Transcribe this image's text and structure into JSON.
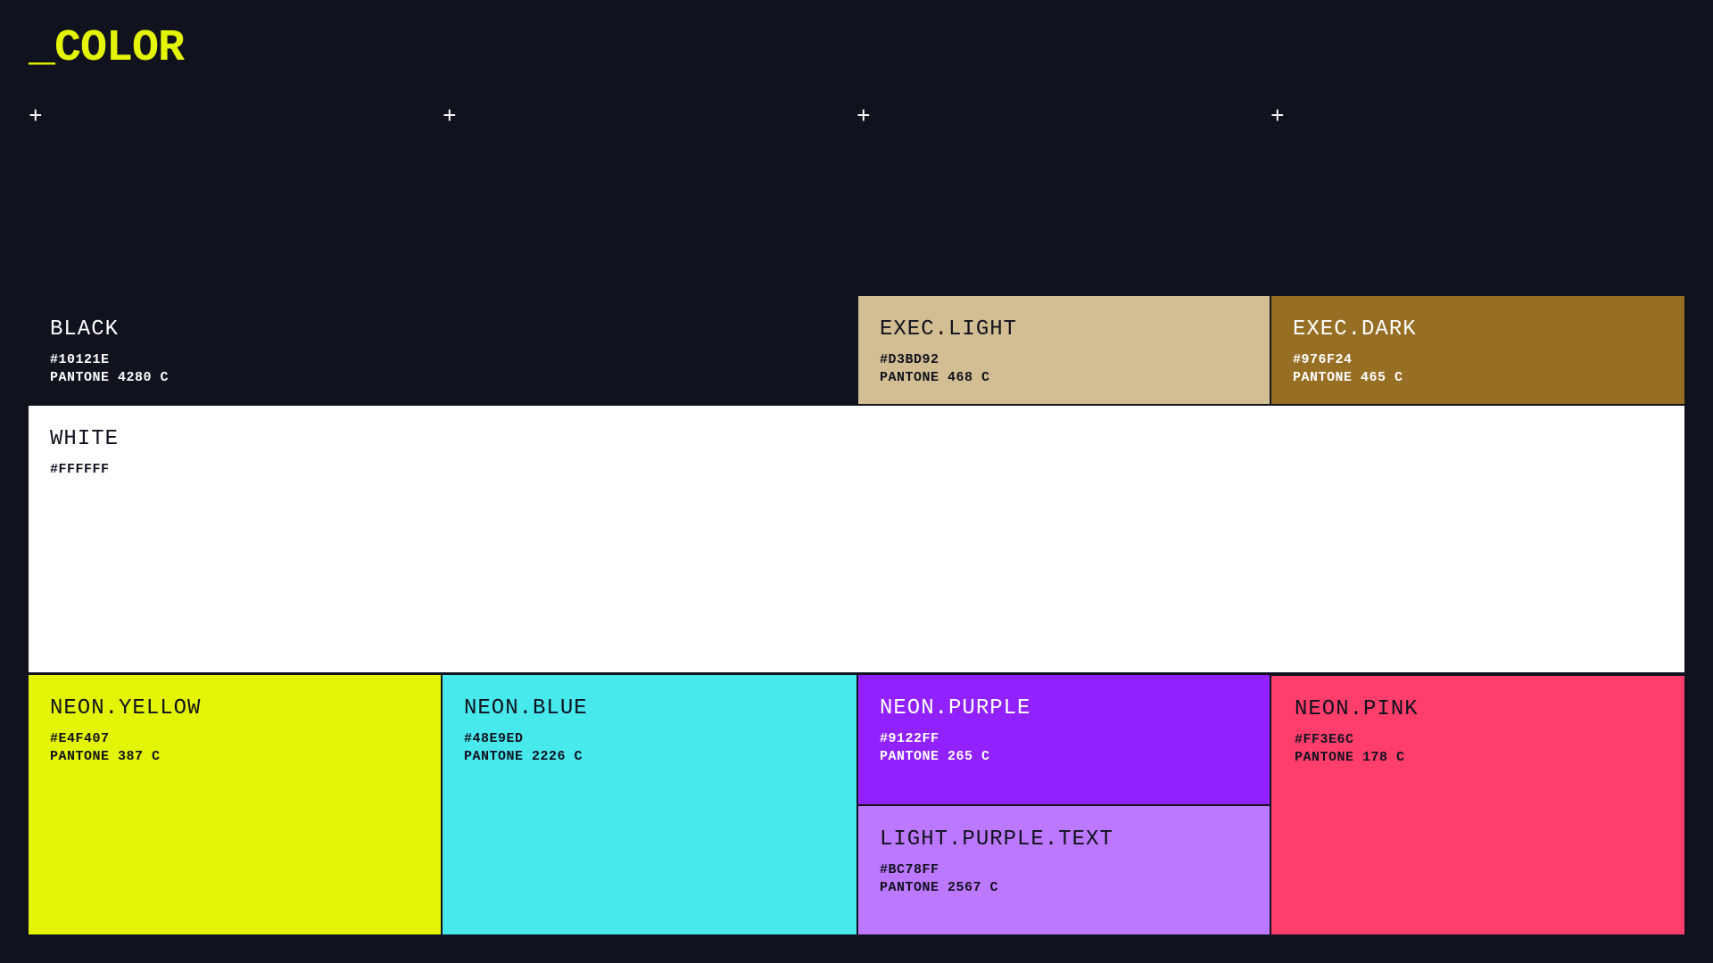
{
  "title": "_COLOR",
  "markers": [
    "+",
    "+",
    "+",
    "+"
  ],
  "swatches": {
    "black": {
      "name": "BLACK",
      "hex": "#10121E",
      "pantone": "PANTONE 4280 C",
      "color": "#10121E"
    },
    "exec_light": {
      "name": "EXEC.LIGHT",
      "hex": "#D3BD92",
      "pantone": "PANTONE 468 C",
      "color": "#D3BD92"
    },
    "exec_dark": {
      "name": "EXEC.DARK",
      "hex": "#976F24",
      "pantone": "PANTONE 465 C",
      "color": "#976F24"
    },
    "white": {
      "name": "WHITE",
      "hex": "#FFFFFF",
      "color": "#FFFFFF"
    },
    "neon_yellow": {
      "name": "NEON.YELLOW",
      "hex": "#E4F407",
      "pantone": "PANTONE 387 C",
      "color": "#E4F407"
    },
    "neon_blue": {
      "name": "NEON.BLUE",
      "hex": "#48E9ED",
      "pantone": "PANTONE 2226 C",
      "color": "#48E9ED"
    },
    "neon_purple": {
      "name": "NEON.PURPLE",
      "hex": "#9122FF",
      "pantone": "PANTONE 265 C",
      "color": "#9122FF"
    },
    "light_purple_text": {
      "name": "LIGHT.PURPLE.TEXT",
      "hex": "#BC78FF",
      "pantone": "PANTONE 2567 C",
      "color": "#BC78FF"
    },
    "neon_pink": {
      "name": "NEON.PINK",
      "hex": "#FF3E6C",
      "pantone": "PANTONE 178 C",
      "color": "#FF3E6C"
    }
  }
}
